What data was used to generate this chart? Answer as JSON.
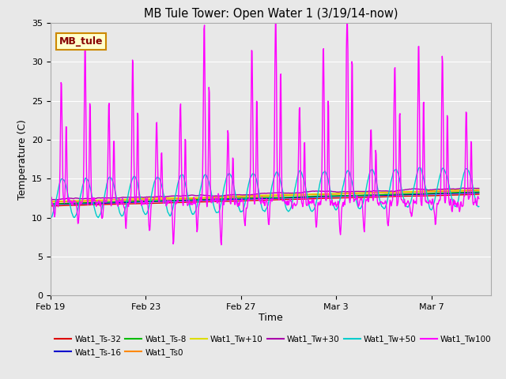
{
  "title": "MB Tule Tower: Open Water 1 (3/19/14-now)",
  "xlabel": "Time",
  "ylabel": "Temperature (C)",
  "ylim": [
    0,
    35
  ],
  "yticks": [
    0,
    5,
    10,
    15,
    20,
    25,
    30,
    35
  ],
  "fig_bg": "#e8e8e8",
  "plot_bg": "#e8e8e8",
  "series": [
    {
      "label": "Wat1_Ts-32",
      "color": "#dd0000"
    },
    {
      "label": "Wat1_Ts-16",
      "color": "#0000cc"
    },
    {
      "label": "Wat1_Ts-8",
      "color": "#00bb00"
    },
    {
      "label": "Wat1_Ts0",
      "color": "#ff8800"
    },
    {
      "label": "Wat1_Tw+10",
      "color": "#dddd00"
    },
    {
      "label": "Wat1_Tw+30",
      "color": "#aa00aa"
    },
    {
      "label": "Wat1_Tw+50",
      "color": "#00cccc"
    },
    {
      "label": "Wat1_Tw100",
      "color": "#ff00ff"
    }
  ],
  "xtick_vals": [
    0,
    4,
    8,
    12,
    16
  ],
  "xtick_labels": [
    "Feb 19",
    "Feb 23",
    "Feb 27",
    "Mar 3",
    "Mar 7"
  ],
  "xlim_end": 18.5,
  "box_label": "MB_tule",
  "box_bg": "#ffffcc",
  "box_border": "#cc8800",
  "box_text_color": "#880000",
  "legend_ncol_row1": 6,
  "lw": 1.0
}
